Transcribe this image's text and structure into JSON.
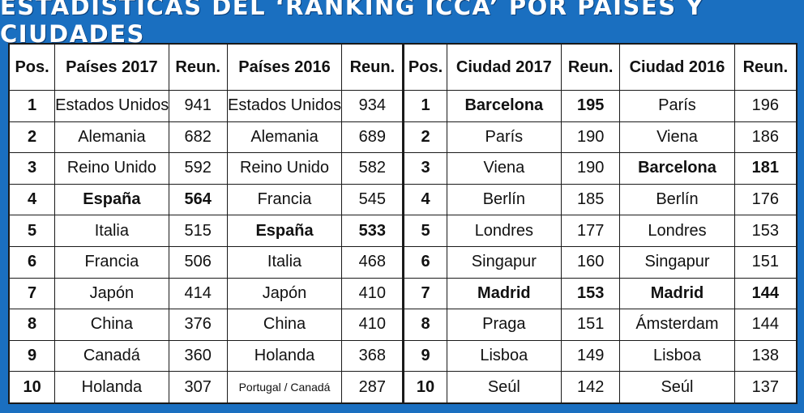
{
  "title": "ESTADÍSTICAS DEL ‘RANKING ICCA’ POR PAÍSES Y CIUDADES",
  "headers": [
    "Pos.",
    "Países 2017",
    "Reun.",
    "Países 2016",
    "Reun.",
    "Pos.",
    "Ciudad 2017",
    "Reun.",
    "Ciudad 2016",
    "Reun."
  ],
  "rows": [
    {
      "pos": "1",
      "pais2017": "Estados Unidos",
      "r2017": "941",
      "pais2016": "Estados Unidos",
      "r2016": "934",
      "pos2": "1",
      "ciudad2017": "Barcelona",
      "rc2017": "195",
      "ciudad2016": "París",
      "rc2016": "196"
    },
    {
      "pos": "2",
      "pais2017": "Alemania",
      "r2017": "682",
      "pais2016": "Alemania",
      "r2016": "689",
      "pos2": "2",
      "ciudad2017": "París",
      "rc2017": "190",
      "ciudad2016": "Viena",
      "rc2016": "186"
    },
    {
      "pos": "3",
      "pais2017": "Reino Unido",
      "r2017": "592",
      "pais2016": "Reino Unido",
      "r2016": "582",
      "pos2": "3",
      "ciudad2017": "Viena",
      "rc2017": "190",
      "ciudad2016": "Barcelona",
      "rc2016": "181"
    },
    {
      "pos": "4",
      "pais2017": "España",
      "r2017": "564",
      "pais2016": "Francia",
      "r2016": "545",
      "pos2": "4",
      "ciudad2017": "Berlín",
      "rc2017": "185",
      "ciudad2016": "Berlín",
      "rc2016": "176"
    },
    {
      "pos": "5",
      "pais2017": "Italia",
      "r2017": "515",
      "pais2016": "España",
      "r2016": "533",
      "pos2": "5",
      "ciudad2017": "Londres",
      "rc2017": "177",
      "ciudad2016": "Londres",
      "rc2016": "153"
    },
    {
      "pos": "6",
      "pais2017": "Francia",
      "r2017": "506",
      "pais2016": "Italia",
      "r2016": "468",
      "pos2": "6",
      "ciudad2017": "Singapur",
      "rc2017": "160",
      "ciudad2016": "Singapur",
      "rc2016": "151"
    },
    {
      "pos": "7",
      "pais2017": "Japón",
      "r2017": "414",
      "pais2016": "Japón",
      "r2016": "410",
      "pos2": "7",
      "ciudad2017": "Madrid",
      "rc2017": "153",
      "ciudad2016": "Madrid",
      "rc2016": "144"
    },
    {
      "pos": "8",
      "pais2017": "China",
      "r2017": "376",
      "pais2016": "China",
      "r2016": "410",
      "pos2": "8",
      "ciudad2017": "Praga",
      "rc2017": "151",
      "ciudad2016": "Ámsterdam",
      "rc2016": "144"
    },
    {
      "pos": "9",
      "pais2017": "Canadá",
      "r2017": "360",
      "pais2016": "Holanda",
      "r2016": "368",
      "pos2": "9",
      "ciudad2017": "Lisboa",
      "rc2017": "149",
      "ciudad2016": "Lisboa",
      "rc2016": "138"
    },
    {
      "pos": "10",
      "pais2017": "Holanda",
      "r2017": "307",
      "pais2016": "Portugal / Canadá",
      "r2016": "287",
      "pos2": "10",
      "ciudad2017": "Seúl",
      "rc2017": "142",
      "ciudad2016": "Seúl",
      "rc2016": "137"
    }
  ],
  "colors": {
    "background": "#1a6fc0",
    "text": "#111111",
    "title": "#ffffff"
  }
}
